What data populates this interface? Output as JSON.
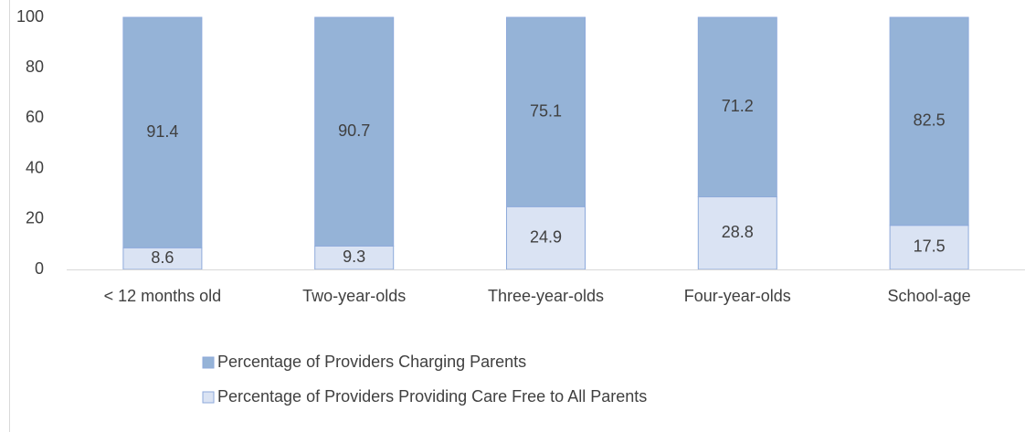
{
  "chart_data": {
    "type": "stacked_bar",
    "categories": [
      "< 12 months old",
      "Two-year-olds",
      "Three-year-olds",
      "Four-year-olds",
      "School-age"
    ],
    "series": [
      {
        "name": "Percentage of Providers Charging Parents",
        "color": "#95b3d7",
        "values": [
          91.4,
          90.7,
          75.1,
          71.2,
          82.5
        ]
      },
      {
        "name": "Percentage of Providers Providing Care Free to All Parents",
        "color": "#dae3f3",
        "values": [
          8.6,
          9.3,
          24.9,
          28.8,
          17.5
        ]
      }
    ],
    "ylim": [
      0,
      100
    ],
    "yticks": [
      0,
      20,
      40,
      60,
      80,
      100
    ],
    "grid": false
  }
}
